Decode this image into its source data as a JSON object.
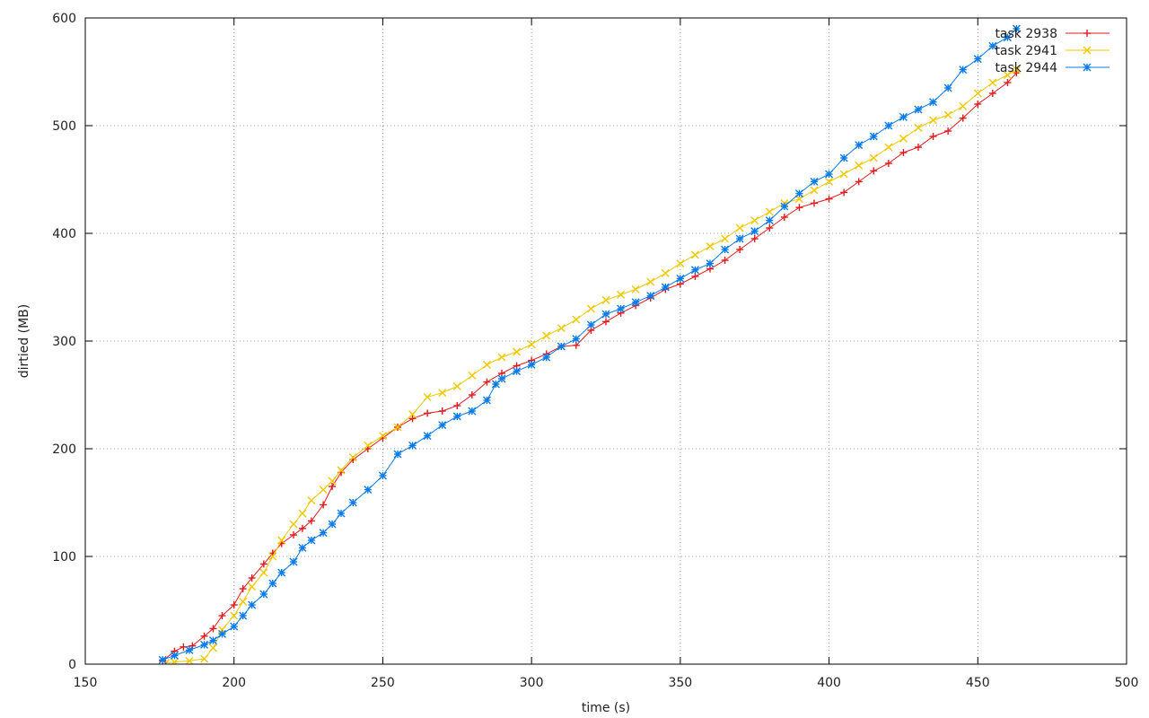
{
  "chart_data": {
    "type": "line",
    "title": "",
    "xlabel": "time (s)",
    "ylabel": "dirtied (MB)",
    "xlim": [
      150,
      500
    ],
    "ylim": [
      0,
      600
    ],
    "xticks": [
      150,
      200,
      250,
      300,
      350,
      400,
      450,
      500
    ],
    "yticks": [
      0,
      100,
      200,
      300,
      400,
      500,
      600
    ],
    "grid": true,
    "legend_position": "top-right",
    "series": [
      {
        "name": "task 2938",
        "color": "#e41a1c",
        "marker": "plus",
        "x": [
          176,
          180,
          183,
          186,
          190,
          193,
          196,
          200,
          203,
          206,
          210,
          213,
          216,
          220,
          223,
          226,
          230,
          233,
          236,
          240,
          245,
          250,
          255,
          260,
          265,
          270,
          275,
          280,
          285,
          290,
          295,
          300,
          305,
          310,
          315,
          320,
          325,
          330,
          335,
          340,
          345,
          350,
          355,
          360,
          365,
          370,
          375,
          380,
          385,
          390,
          395,
          400,
          405,
          410,
          415,
          420,
          425,
          430,
          435,
          440,
          445,
          450,
          455,
          460,
          463
        ],
        "y": [
          3,
          12,
          16,
          17,
          26,
          33,
          45,
          55,
          70,
          80,
          93,
          103,
          112,
          120,
          126,
          133,
          148,
          165,
          178,
          190,
          200,
          210,
          220,
          228,
          233,
          235,
          240,
          250,
          262,
          270,
          277,
          282,
          288,
          295,
          296,
          310,
          318,
          326,
          333,
          340,
          348,
          353,
          360,
          367,
          375,
          385,
          395,
          405,
          415,
          424,
          428,
          432,
          438,
          448,
          458,
          465,
          475,
          480,
          490,
          495,
          507,
          520,
          530,
          540,
          549
        ]
      },
      {
        "name": "task 2941",
        "color": "#f0c800",
        "marker": "cross",
        "x": [
          177,
          180,
          185,
          190,
          193,
          196,
          200,
          203,
          206,
          210,
          213,
          216,
          220,
          223,
          226,
          230,
          233,
          236,
          240,
          245,
          250,
          255,
          260,
          265,
          270,
          275,
          280,
          285,
          290,
          295,
          300,
          305,
          310,
          315,
          320,
          325,
          330,
          335,
          340,
          345,
          350,
          355,
          360,
          365,
          370,
          375,
          380,
          385,
          390,
          395,
          400,
          405,
          410,
          415,
          420,
          425,
          430,
          435,
          440,
          445,
          450,
          455,
          460,
          463
        ],
        "y": [
          1,
          2,
          3,
          5,
          15,
          32,
          45,
          58,
          72,
          85,
          100,
          115,
          130,
          140,
          152,
          162,
          170,
          180,
          192,
          203,
          212,
          220,
          232,
          248,
          252,
          258,
          268,
          278,
          285,
          290,
          297,
          305,
          312,
          320,
          330,
          338,
          343,
          348,
          355,
          363,
          372,
          380,
          388,
          395,
          405,
          412,
          420,
          428,
          432,
          440,
          448,
          455,
          463,
          470,
          480,
          488,
          498,
          505,
          510,
          518,
          530,
          540,
          547,
          552
        ]
      },
      {
        "name": "task 2944",
        "color": "#0a7be8",
        "marker": "star",
        "x": [
          176,
          180,
          185,
          190,
          193,
          196,
          200,
          203,
          206,
          210,
          213,
          216,
          220,
          223,
          226,
          230,
          233,
          236,
          240,
          245,
          250,
          255,
          260,
          265,
          270,
          275,
          280,
          285,
          288,
          290,
          295,
          300,
          305,
          310,
          315,
          320,
          325,
          330,
          335,
          340,
          345,
          350,
          355,
          360,
          365,
          370,
          375,
          380,
          385,
          390,
          395,
          400,
          405,
          410,
          415,
          420,
          425,
          430,
          435,
          440,
          445,
          450,
          455,
          460,
          463
        ],
        "y": [
          4,
          8,
          13,
          18,
          22,
          28,
          35,
          45,
          55,
          65,
          75,
          85,
          95,
          108,
          115,
          122,
          130,
          140,
          150,
          162,
          175,
          195,
          203,
          212,
          222,
          230,
          235,
          245,
          260,
          265,
          272,
          278,
          285,
          295,
          302,
          315,
          325,
          330,
          336,
          342,
          350,
          358,
          366,
          372,
          385,
          395,
          402,
          412,
          425,
          437,
          448,
          455,
          470,
          482,
          490,
          500,
          508,
          515,
          522,
          535,
          552,
          562,
          574,
          582,
          590
        ]
      }
    ]
  }
}
